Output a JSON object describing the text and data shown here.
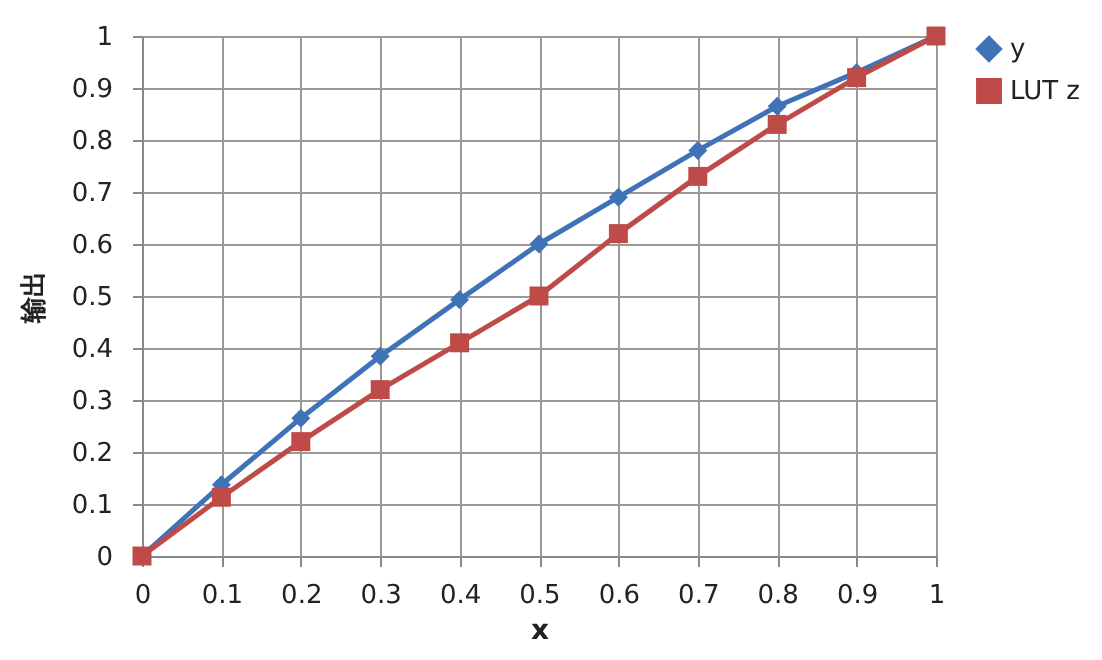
{
  "chart_data": {
    "type": "line",
    "xlabel": "x",
    "ylabel": "输出",
    "x": [
      0,
      0.1,
      0.2,
      0.3,
      0.4,
      0.5,
      0.6,
      0.7,
      0.8,
      0.9,
      1
    ],
    "series": [
      {
        "name": "y",
        "color": "#3f72b6",
        "marker": "diamond",
        "values": [
          0,
          0.137,
          0.265,
          0.384,
          0.493,
          0.6,
          0.69,
          0.78,
          0.865,
          0.93,
          1
        ]
      },
      {
        "name": "LUT z",
        "color": "#be4b48",
        "marker": "square",
        "values": [
          0,
          0.113,
          0.22,
          0.32,
          0.41,
          0.5,
          0.62,
          0.73,
          0.83,
          0.92,
          1
        ]
      }
    ],
    "xlim": [
      0,
      1
    ],
    "xticks": [
      0,
      0.1,
      0.2,
      0.3,
      0.4,
      0.5,
      0.6,
      0.7,
      0.8,
      0.9,
      1
    ],
    "ylim": [
      0,
      1
    ],
    "yticks": [
      0,
      0.1,
      0.2,
      0.3,
      0.4,
      0.5,
      0.6,
      0.7,
      0.8,
      0.9,
      1
    ],
    "grid": true,
    "legend": "right",
    "line_style": "solid"
  }
}
